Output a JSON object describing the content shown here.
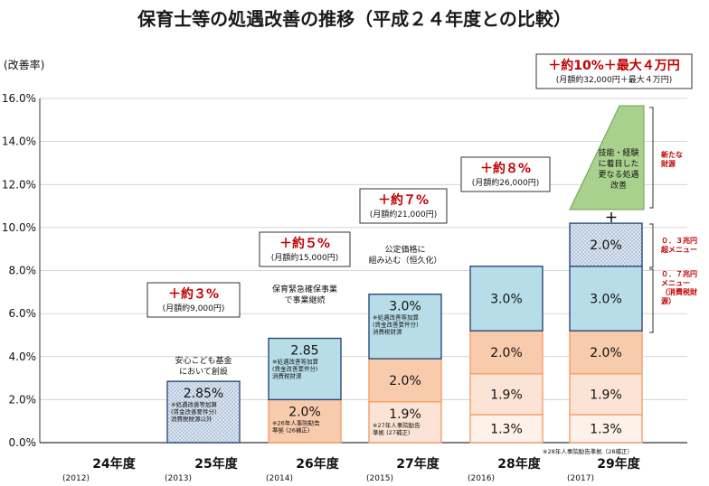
{
  "chart_data": {
    "type": "bar",
    "title": "保育士等の処遇改善の推移（平成２４年度との比較）",
    "ylabel": "(改善率)",
    "ylim": [
      0,
      16
    ],
    "yticks": [
      "0.0%",
      "2.0%",
      "4.0%",
      "6.0%",
      "8.0%",
      "10.0%",
      "12.0%",
      "14.0%",
      "16.0%"
    ],
    "categories": [
      {
        "label": "24年度",
        "sub": "(2012)"
      },
      {
        "label": "25年度",
        "sub": "(2013)"
      },
      {
        "label": "26年度",
        "sub": "(2014)"
      },
      {
        "label": "27年度",
        "sub": "(2015)"
      },
      {
        "label": "28年度",
        "sub": "(2016)"
      },
      {
        "label": "29年度",
        "sub": "(2017)"
      }
    ],
    "stacks": [
      [],
      [
        {
          "value": 2.85,
          "label": "2.85%",
          "kind": "dotted",
          "note": [
            "※処遇改善等加算",
            "(賃金改善要件分)",
            "消費税財源以外"
          ]
        }
      ],
      [
        {
          "value": 2.0,
          "label": "2.0%",
          "kind": "orange",
          "note": [
            "※26年人事院勧告",
            "準拠 (26補正)"
          ]
        },
        {
          "value": 2.85,
          "label": "2.85",
          "kind": "blue",
          "note": [
            "※処遇改善等加算",
            "(賃金改善要件分)",
            "消費税財源"
          ]
        }
      ],
      [
        {
          "value": 1.9,
          "label": "1.9%",
          "kind": "peach",
          "note": [
            "※27年人事院勧告",
            "準拠 (27補正)"
          ]
        },
        {
          "value": 2.0,
          "label": "2.0%",
          "kind": "orange"
        },
        {
          "value": 3.0,
          "label": "3.0%",
          "kind": "blue",
          "note": [
            "※処遇改善等加算",
            "(賃金改善要件分)",
            "消費税財源"
          ]
        }
      ],
      [
        {
          "value": 1.3,
          "label": "1.3%",
          "kind": "cream"
        },
        {
          "value": 1.9,
          "label": "1.9%",
          "kind": "peach"
        },
        {
          "value": 2.0,
          "label": "2.0%",
          "kind": "orange"
        },
        {
          "value": 3.0,
          "label": "3.0%",
          "kind": "blue"
        }
      ],
      [
        {
          "value": 1.3,
          "label": "1.3%",
          "kind": "cream"
        },
        {
          "value": 1.9,
          "label": "1.9%",
          "kind": "peach"
        },
        {
          "value": 2.0,
          "label": "2.0%",
          "kind": "orange"
        },
        {
          "value": 3.0,
          "label": "3.0%",
          "kind": "blue"
        },
        {
          "value": 2.0,
          "label": "2.0%",
          "kind": "dotted"
        }
      ]
    ],
    "callouts": [
      {
        "main": "＋約３%",
        "sub": "(月額約9,000円)"
      },
      {
        "main": "＋約５%",
        "sub": "(月額約15,000円)"
      },
      {
        "main": "＋約７%",
        "sub": "(月額約21,000円)"
      },
      {
        "main": "＋約８%",
        "sub": "(月額約26,000円)"
      },
      {
        "main": "＋約10%＋最大４万円",
        "sub": "(月額約32,000円＋最大４万円)"
      }
    ],
    "annotations": {
      "y2013": [
        "安心こども基金",
        "において創設"
      ],
      "y2014": [
        "保育緊急確保事業",
        "で事業継続"
      ],
      "y2015": [
        "公定価格に",
        "組み込む（恒久化）"
      ],
      "footnote": "※28年人事院勧告準拠（28補正）",
      "green_box": [
        "技能・経験",
        "に着目した",
        "更なる処遇",
        "改善"
      ],
      "plus": "＋"
    },
    "side_labels": {
      "top": [
        "新たな",
        "財源"
      ],
      "mid": [
        "０．３兆円",
        "超メニュー"
      ],
      "low": [
        "０．７兆円",
        "メニュー",
        "（消費税財",
        "源）"
      ]
    },
    "colors": {
      "blue": "#b7dde8",
      "dotted": "#dbe8f3",
      "orange": "#f8cbad",
      "peach": "#fbe4d5",
      "cream": "#fdf1ea",
      "border_blue": "#2e4a7a",
      "border_orange": "#f4a06a",
      "green": "#a9d18e",
      "red": "#c00000"
    }
  }
}
